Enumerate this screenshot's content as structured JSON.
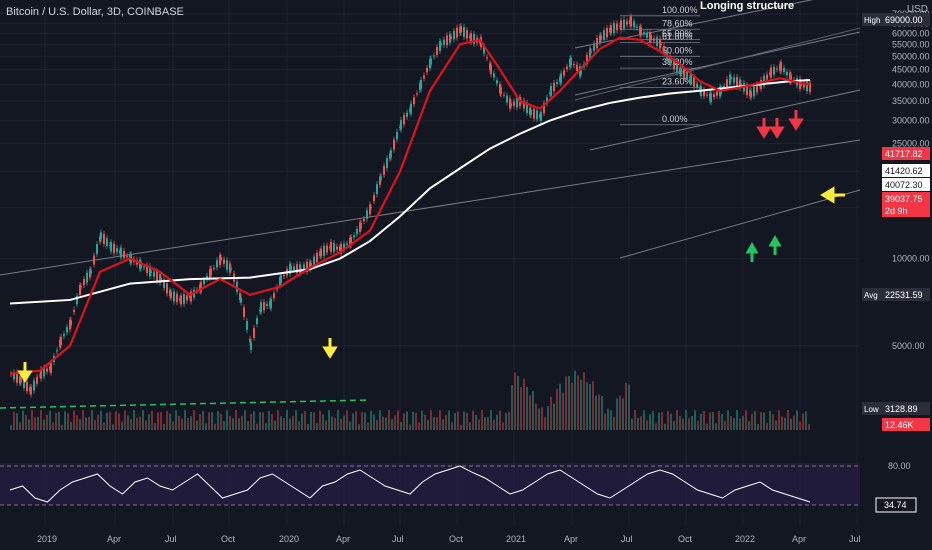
{
  "header": {
    "symbol": "Bitcoin / U.S. Dollar, 3D, COINBASE",
    "idea_title": "Longing structure",
    "currency": "USD"
  },
  "chart_data": {
    "type": "line",
    "price_axis": {
      "ticks": [
        70000,
        65000,
        60000,
        55000,
        50000,
        45000,
        40000,
        35000,
        30000,
        25000,
        20000,
        15000,
        10000,
        5000
      ],
      "tick_labels": [
        "70000.00",
        "65000.00",
        "60000.00",
        "55000.00",
        "50000.00",
        "45000.00",
        "40000.00",
        "35000.00",
        "30000.00",
        "25000.00",
        "20000.00",
        "15000.00",
        "10000.00",
        "5000.00"
      ]
    },
    "time_axis": {
      "labels": [
        "2019",
        "Apr",
        "Jul",
        "Oct",
        "2020",
        "Apr",
        "Jul",
        "Oct",
        "2021",
        "Apr",
        "Jul",
        "Oct",
        "2022",
        "Apr",
        "Jul"
      ]
    },
    "price_labels": [
      {
        "tag": "High",
        "value": "69000.00",
        "color": "#2a2e39"
      },
      {
        "tag": "",
        "value": "41717.82",
        "color": "#f23645"
      },
      {
        "tag": "",
        "value": "41420.62",
        "color": "#ffffff"
      },
      {
        "tag": "",
        "value": "40072.30",
        "color": "#ffffff"
      },
      {
        "tag": "",
        "value": "39037.75",
        "color": "#f23645"
      },
      {
        "tag": "",
        "value": "2d 9h",
        "color": "#f23645"
      },
      {
        "tag": "Avg",
        "value": "22531.59",
        "color": "#2a2e39"
      },
      {
        "tag": "Low",
        "value": "3128.89",
        "color": "#2a2e39"
      },
      {
        "tag": "",
        "value": "12.46K",
        "color": "#f23645"
      }
    ],
    "fib_levels": [
      {
        "label": "100.00%",
        "value": 69000
      },
      {
        "label": "78.60%",
        "value": 62000
      },
      {
        "label": "65.00%",
        "value": 57200
      },
      {
        "label": "61.80%",
        "value": 55800
      },
      {
        "label": "50.00%",
        "value": 50000
      },
      {
        "label": "38.20%",
        "value": 45500
      },
      {
        "label": "23.60%",
        "value": 39000
      },
      {
        "label": "0.00%",
        "value": 29000
      }
    ],
    "price_series": [
      [
        0,
        4000
      ],
      [
        10,
        3800
      ],
      [
        20,
        3500
      ],
      [
        30,
        4000
      ],
      [
        40,
        4200
      ],
      [
        50,
        5200
      ],
      [
        60,
        6000
      ],
      [
        70,
        8000
      ],
      [
        80,
        9000
      ],
      [
        90,
        12000
      ],
      [
        100,
        11000
      ],
      [
        110,
        10500
      ],
      [
        120,
        10000
      ],
      [
        130,
        9500
      ],
      [
        140,
        9000
      ],
      [
        150,
        8500
      ],
      [
        160,
        7500
      ],
      [
        170,
        7200
      ],
      [
        180,
        7400
      ],
      [
        190,
        8000
      ],
      [
        200,
        9000
      ],
      [
        210,
        10000
      ],
      [
        220,
        9200
      ],
      [
        230,
        7200
      ],
      [
        240,
        5000
      ],
      [
        250,
        6800
      ],
      [
        260,
        7000
      ],
      [
        270,
        8500
      ],
      [
        280,
        9300
      ],
      [
        290,
        9200
      ],
      [
        300,
        9500
      ],
      [
        310,
        10500
      ],
      [
        320,
        11000
      ],
      [
        330,
        10800
      ],
      [
        340,
        11500
      ],
      [
        350,
        13000
      ],
      [
        360,
        15000
      ],
      [
        370,
        19000
      ],
      [
        380,
        23000
      ],
      [
        390,
        29000
      ],
      [
        400,
        33000
      ],
      [
        410,
        40000
      ],
      [
        420,
        48000
      ],
      [
        430,
        55000
      ],
      [
        440,
        58000
      ],
      [
        450,
        62000
      ],
      [
        460,
        58000
      ],
      [
        470,
        56000
      ],
      [
        480,
        45000
      ],
      [
        490,
        38000
      ],
      [
        500,
        34000
      ],
      [
        510,
        35000
      ],
      [
        520,
        32000
      ],
      [
        530,
        31000
      ],
      [
        540,
        38000
      ],
      [
        550,
        42000
      ],
      [
        560,
        48000
      ],
      [
        570,
        44000
      ],
      [
        580,
        52000
      ],
      [
        590,
        58000
      ],
      [
        600,
        62000
      ],
      [
        610,
        64000
      ],
      [
        620,
        66000
      ],
      [
        630,
        61000
      ],
      [
        640,
        58000
      ],
      [
        650,
        55000
      ],
      [
        660,
        48000
      ],
      [
        670,
        44000
      ],
      [
        680,
        42000
      ],
      [
        690,
        38000
      ],
      [
        700,
        36000
      ],
      [
        710,
        38000
      ],
      [
        720,
        42000
      ],
      [
        730,
        40000
      ],
      [
        740,
        37000
      ],
      [
        750,
        40000
      ],
      [
        760,
        44000
      ],
      [
        770,
        46000
      ],
      [
        780,
        42000
      ],
      [
        790,
        40000
      ],
      [
        800,
        39000
      ]
    ],
    "ema_series": [
      [
        0,
        4000
      ],
      [
        30,
        4100
      ],
      [
        60,
        5000
      ],
      [
        90,
        9000
      ],
      [
        120,
        10000
      ],
      [
        150,
        9000
      ],
      [
        180,
        7500
      ],
      [
        210,
        8500
      ],
      [
        240,
        7500
      ],
      [
        270,
        8000
      ],
      [
        300,
        9300
      ],
      [
        330,
        10500
      ],
      [
        360,
        12500
      ],
      [
        390,
        20000
      ],
      [
        420,
        38000
      ],
      [
        450,
        55000
      ],
      [
        470,
        57000
      ],
      [
        490,
        45000
      ],
      [
        510,
        35000
      ],
      [
        530,
        33000
      ],
      [
        550,
        38000
      ],
      [
        570,
        45000
      ],
      [
        590,
        53000
      ],
      [
        610,
        58000
      ],
      [
        630,
        57000
      ],
      [
        650,
        52000
      ],
      [
        670,
        47000
      ],
      [
        690,
        41000
      ],
      [
        710,
        38000
      ],
      [
        730,
        39000
      ],
      [
        750,
        40500
      ],
      [
        770,
        42000
      ],
      [
        790,
        40500
      ],
      [
        800,
        40000
      ]
    ],
    "ma200_series": [
      [
        0,
        7000
      ],
      [
        60,
        7200
      ],
      [
        120,
        8200
      ],
      [
        180,
        8500
      ],
      [
        240,
        8600
      ],
      [
        300,
        9200
      ],
      [
        330,
        10000
      ],
      [
        360,
        11500
      ],
      [
        390,
        14000
      ],
      [
        420,
        17500
      ],
      [
        450,
        20500
      ],
      [
        480,
        24000
      ],
      [
        510,
        27000
      ],
      [
        540,
        30000
      ],
      [
        570,
        32500
      ],
      [
        600,
        34500
      ],
      [
        630,
        36000
      ],
      [
        660,
        37200
      ],
      [
        690,
        38000
      ],
      [
        720,
        39000
      ],
      [
        750,
        40000
      ],
      [
        780,
        41000
      ],
      [
        800,
        41400
      ]
    ],
    "rsi": {
      "levels": [
        80,
        34.74
      ],
      "level_labels": [
        "80.00",
        "34.74"
      ],
      "series": [
        50,
        55,
        40,
        35,
        50,
        60,
        65,
        70,
        55,
        45,
        60,
        65,
        55,
        50,
        60,
        70,
        55,
        40,
        45,
        50,
        65,
        70,
        60,
        50,
        40,
        55,
        60,
        70,
        75,
        65,
        55,
        50,
        45,
        60,
        70,
        75,
        80,
        72,
        65,
        55,
        45,
        50,
        60,
        70,
        75,
        65,
        55,
        45,
        40,
        50,
        60,
        70,
        75,
        70,
        60,
        50,
        45,
        40,
        50,
        55,
        60,
        50,
        45,
        40,
        35
      ]
    }
  }
}
